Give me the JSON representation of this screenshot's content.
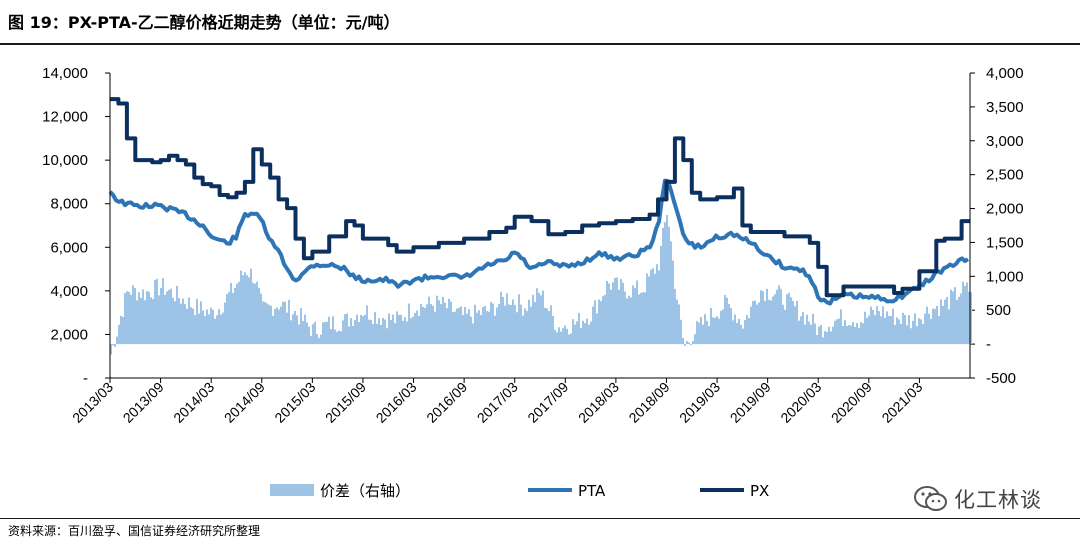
{
  "header": {
    "title": "图 19：PX-PTA-乙二醇价格近期走势（单位：元/吨）"
  },
  "footer": {
    "source": "资料来源：百川盈孚、国信证券经济研究所整理",
    "watermark": "化工林谈",
    "watermark_icon": "wechat-icon"
  },
  "colors": {
    "spread": "#9dc3e6",
    "pta": "#2e75b6",
    "px": "#0b2f5e"
  },
  "chart_data": {
    "type": "line",
    "y_left": {
      "ticks": [
        "14,000",
        "12,000",
        "10,000",
        "8,000",
        "6,000",
        "4,000",
        "2,000",
        "-"
      ],
      "ylim": [
        0,
        14000
      ]
    },
    "y_right": {
      "ticks": [
        "4,000",
        "3,500",
        "3,000",
        "2,500",
        "2,000",
        "1,500",
        "1,000",
        "500",
        "-",
        "-500"
      ],
      "ylim": [
        -500,
        4000
      ]
    },
    "x_ticks": [
      "2013/03",
      "2013/09",
      "2014/03",
      "2014/09",
      "2015/03",
      "2015/09",
      "2016/03",
      "2016/09",
      "2017/03",
      "2017/09",
      "2018/03",
      "2018/09",
      "2019/03",
      "2019/09",
      "2020/03",
      "2020/09",
      "2021/03"
    ],
    "legend": [
      {
        "name": "价差（右轴）",
        "style": "area"
      },
      {
        "name": "PTA",
        "style": "line"
      },
      {
        "name": "PX",
        "style": "line"
      }
    ],
    "series": [
      {
        "name": "PX",
        "axis": "left",
        "x": [
          "2013/03",
          "2013/04",
          "2013/05",
          "2013/06",
          "2013/08",
          "2013/09",
          "2013/10",
          "2013/11",
          "2013/12",
          "2014/01",
          "2014/02",
          "2014/03",
          "2014/04",
          "2014/05",
          "2014/06",
          "2014/07",
          "2014/08",
          "2014/09",
          "2014/10",
          "2014/11",
          "2014/12",
          "2015/01",
          "2015/02",
          "2015/03",
          "2015/05",
          "2015/07",
          "2015/08",
          "2015/09",
          "2015/12",
          "2016/01",
          "2016/03",
          "2016/06",
          "2016/09",
          "2016/12",
          "2017/02",
          "2017/03",
          "2017/05",
          "2017/07",
          "2017/09",
          "2017/11",
          "2018/01",
          "2018/03",
          "2018/05",
          "2018/07",
          "2018/08",
          "2018/09",
          "2018/10",
          "2018/11",
          "2018/12",
          "2019/01",
          "2019/03",
          "2019/05",
          "2019/06",
          "2019/07",
          "2019/09",
          "2019/11",
          "2019/12",
          "2020/01",
          "2020/02",
          "2020/03",
          "2020/04",
          "2020/06",
          "2020/09",
          "2020/12",
          "2021/01",
          "2021/03",
          "2021/05",
          "2021/06",
          "2021/08"
        ],
        "values": [
          12800,
          12600,
          11000,
          10000,
          9900,
          10000,
          10200,
          10000,
          9800,
          9200,
          8900,
          8800,
          8400,
          8300,
          8500,
          9000,
          10500,
          9800,
          9200,
          8200,
          7800,
          6400,
          5500,
          5800,
          6500,
          7200,
          7000,
          6400,
          6100,
          5800,
          6000,
          6200,
          6400,
          6700,
          6900,
          7400,
          7200,
          6600,
          6700,
          7000,
          7100,
          7200,
          7300,
          7500,
          8200,
          9000,
          11000,
          10000,
          8500,
          8200,
          8300,
          8700,
          7000,
          6700,
          6700,
          6500,
          6500,
          6500,
          6200,
          5100,
          3800,
          4200,
          4200,
          3900,
          4100,
          4900,
          6300,
          6400,
          7200
        ]
      },
      {
        "name": "PTA",
        "axis": "left",
        "x": [
          "2013/03",
          "2013/04",
          "2013/06",
          "2013/09",
          "2013/12",
          "2014/02",
          "2014/03",
          "2014/04",
          "2014/05",
          "2014/06",
          "2014/07",
          "2014/08",
          "2014/09",
          "2014/10",
          "2014/11",
          "2014/12",
          "2015/01",
          "2015/02",
          "2015/03",
          "2015/05",
          "2015/07",
          "2015/08",
          "2015/09",
          "2015/12",
          "2016/01",
          "2016/03",
          "2016/06",
          "2016/09",
          "2016/12",
          "2017/02",
          "2017/03",
          "2017/05",
          "2017/07",
          "2017/09",
          "2017/11",
          "2018/01",
          "2018/03",
          "2018/05",
          "2018/07",
          "2018/08",
          "2018/09",
          "2018/10",
          "2018/11",
          "2018/12",
          "2019/01",
          "2019/03",
          "2019/05",
          "2019/06",
          "2019/07",
          "2019/09",
          "2019/11",
          "2019/12",
          "2020/01",
          "2020/02",
          "2020/03",
          "2020/04",
          "2020/06",
          "2020/09",
          "2020/12",
          "2021/01",
          "2021/03",
          "2021/05",
          "2021/06",
          "2021/08"
        ],
        "values": [
          8600,
          8100,
          7900,
          7900,
          7500,
          7000,
          6500,
          6300,
          6200,
          6500,
          7500,
          7600,
          7200,
          6300,
          5800,
          5000,
          4500,
          4800,
          5200,
          5200,
          5000,
          4600,
          4500,
          4500,
          4200,
          4500,
          4700,
          4600,
          5200,
          5400,
          5800,
          5000,
          5300,
          5100,
          5300,
          5700,
          5500,
          5600,
          6000,
          7000,
          9400,
          8000,
          6500,
          6100,
          6000,
          6500,
          6600,
          6400,
          6200,
          5600,
          5100,
          5000,
          5000,
          4600,
          3800,
          3400,
          3800,
          3700,
          3600,
          3800,
          4200,
          4800,
          5000,
          5400
        ]
      },
      {
        "name": "价差（右轴）",
        "axis": "right",
        "x": [
          "2013/03",
          "2013/05",
          "2013/07",
          "2013/09",
          "2013/11",
          "2014/01",
          "2014/03",
          "2014/04",
          "2014/06",
          "2014/07",
          "2014/08",
          "2014/09",
          "2014/11",
          "2015/01",
          "2015/03",
          "2015/05",
          "2015/07",
          "2015/09",
          "2015/11",
          "2016/01",
          "2016/03",
          "2016/06",
          "2016/09",
          "2016/12",
          "2017/02",
          "2017/04",
          "2017/06",
          "2017/08",
          "2017/10",
          "2017/12",
          "2018/02",
          "2018/04",
          "2018/06",
          "2018/07",
          "2018/08",
          "2018/09",
          "2018/10",
          "2018/11",
          "2018/12",
          "2019/02",
          "2019/04",
          "2019/06",
          "2019/08",
          "2019/10",
          "2019/12",
          "2020/02",
          "2020/03",
          "2020/04",
          "2020/06",
          "2020/08",
          "2020/10",
          "2020/12",
          "2021/02",
          "2021/04",
          "2021/06",
          "2021/08"
        ],
        "values": [
          -150,
          800,
          750,
          850,
          700,
          550,
          450,
          550,
          900,
          1100,
          1000,
          500,
          600,
          450,
          200,
          300,
          350,
          500,
          400,
          350,
          550,
          600,
          400,
          500,
          700,
          550,
          750,
          250,
          300,
          450,
          900,
          800,
          800,
          1000,
          1200,
          2000,
          800,
          -50,
          150,
          400,
          600,
          300,
          800,
          750,
          550,
          350,
          200,
          300,
          400,
          350,
          500,
          400,
          350,
          500,
          600,
          800
        ]
      }
    ]
  }
}
